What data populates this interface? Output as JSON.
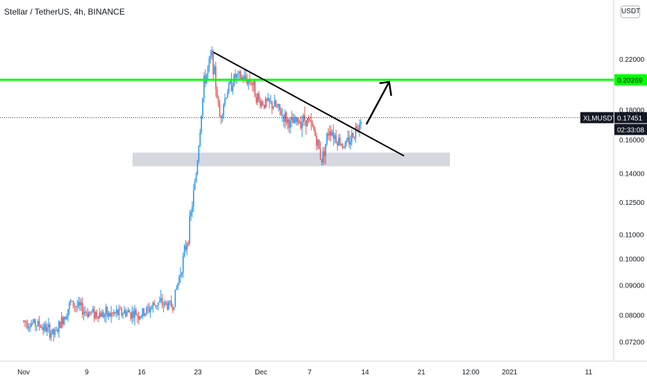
{
  "header": {
    "title": "Stellar / TetherUS, 4h, BINANCE"
  },
  "currency_button": "USDT",
  "price_labels": {
    "symbol": "XLMUSDT",
    "last_price": "0.17451",
    "countdown": "02:33:08",
    "horizontal_level": "0.20269"
  },
  "colors": {
    "up": "#26a69a",
    "up_candle": "#2196f3",
    "down": "#ef5350",
    "level_line": "#00ff00",
    "trendline": "#000000",
    "zone": "#d1d4dc"
  },
  "chart_data": {
    "type": "candlestick",
    "title": "Stellar / TetherUS, 4h, BINANCE",
    "y_axis": {
      "scale": "log",
      "ticks": [
        "0.22000",
        "0.20269",
        "0.18000",
        "0.16000",
        "0.14000",
        "0.12500",
        "0.11000",
        "0.10000",
        "0.09000",
        "0.08000",
        "0.07200"
      ],
      "range": [
        0.068,
        0.245
      ]
    },
    "x_axis": {
      "ticks": [
        "Nov",
        "9",
        "16",
        "23",
        "Dec",
        "7",
        "14",
        "21",
        "12:00",
        "2021",
        "11"
      ]
    },
    "key_levels": {
      "horizontal_resistance": 0.20269,
      "support_zone": [
        0.144,
        0.152
      ],
      "last_price": 0.17451
    },
    "annotations": [
      "descending trendline from ~0.226 (Nov 25) to ~0.150 (Dec 17)",
      "breakout arrow pointing toward 0.20269"
    ],
    "price_path": [
      [
        "Nov 1",
        0.078
      ],
      [
        "Nov 3",
        0.077
      ],
      [
        "Nov 5",
        0.074
      ],
      [
        "Nov 7",
        0.084
      ],
      [
        "Nov 9",
        0.081
      ],
      [
        "Nov 12",
        0.08
      ],
      [
        "Nov 14",
        0.081
      ],
      [
        "Nov 16",
        0.08
      ],
      [
        "Nov 18",
        0.084
      ],
      [
        "Nov 20",
        0.083
      ],
      [
        "Nov 21",
        0.095
      ],
      [
        "Nov 22",
        0.11
      ],
      [
        "Nov 23",
        0.14
      ],
      [
        "Nov 24",
        0.2
      ],
      [
        "Nov 25",
        0.224
      ],
      [
        "Nov 26",
        0.175
      ],
      [
        "Nov 27",
        0.195
      ],
      [
        "Nov 28",
        0.205
      ],
      [
        "Nov 30",
        0.202
      ],
      [
        "Dec 1",
        0.186
      ],
      [
        "Dec 3",
        0.183
      ],
      [
        "Dec 5",
        0.17
      ],
      [
        "Dec 7",
        0.174
      ],
      [
        "Dec 8",
        0.166
      ],
      [
        "Dec 9",
        0.148
      ],
      [
        "Dec 10",
        0.168
      ],
      [
        "Dec 11",
        0.16
      ],
      [
        "Dec 12",
        0.156
      ],
      [
        "Dec 13",
        0.163
      ],
      [
        "Dec 14",
        0.175
      ]
    ]
  }
}
